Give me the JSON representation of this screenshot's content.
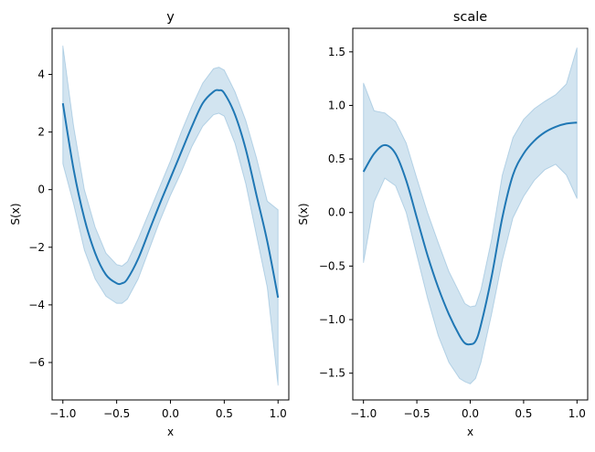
{
  "chart_data": [
    {
      "type": "line",
      "title": "y",
      "xlabel": "x",
      "ylabel": "S(x)",
      "xlim": [
        -1.1,
        1.1
      ],
      "ylim": [
        -7.3,
        5.6
      ],
      "xticks": [
        -1.0,
        -0.5,
        0.0,
        0.5,
        1.0
      ],
      "xtick_labels": [
        "−1.0",
        "−0.5",
        "0.0",
        "0.5",
        "1.0"
      ],
      "yticks": [
        -6,
        -4,
        -2,
        0,
        2,
        4
      ],
      "ytick_labels": [
        "−6",
        "−4",
        "−2",
        "0",
        "2",
        "4"
      ],
      "grid": false,
      "line_color": "#1f77b4",
      "band_color": "#1f77b4",
      "band_opacity": 0.2,
      "x": [
        -1.0,
        -0.9,
        -0.8,
        -0.7,
        -0.6,
        -0.5,
        -0.45,
        -0.4,
        -0.3,
        -0.2,
        -0.1,
        0.0,
        0.1,
        0.2,
        0.3,
        0.4,
        0.45,
        0.5,
        0.6,
        0.7,
        0.8,
        0.9,
        1.0
      ],
      "series": [
        {
          "values": [
            3.0,
            0.7,
            -1.0,
            -2.2,
            -2.95,
            -3.25,
            -3.25,
            -3.1,
            -2.4,
            -1.45,
            -0.5,
            0.4,
            1.3,
            2.2,
            3.0,
            3.4,
            3.45,
            3.35,
            2.6,
            1.4,
            -0.2,
            -1.8,
            -3.75
          ],
          "lower": [
            0.9,
            -0.5,
            -2.1,
            -3.1,
            -3.7,
            -3.95,
            -3.95,
            -3.8,
            -3.1,
            -2.1,
            -1.1,
            -0.2,
            0.6,
            1.5,
            2.2,
            2.6,
            2.65,
            2.55,
            1.6,
            0.2,
            -1.6,
            -3.4,
            -6.8
          ],
          "upper": [
            5.0,
            2.2,
            0.0,
            -1.3,
            -2.2,
            -2.6,
            -2.65,
            -2.5,
            -1.7,
            -0.8,
            0.1,
            1.0,
            2.0,
            2.9,
            3.7,
            4.2,
            4.25,
            4.15,
            3.4,
            2.4,
            1.1,
            -0.4,
            -0.7
          ]
        }
      ]
    },
    {
      "type": "line",
      "title": "scale",
      "xlabel": "x",
      "ylabel": "S(x)",
      "xlim": [
        -1.1,
        1.1
      ],
      "ylim": [
        -1.75,
        1.72
      ],
      "xticks": [
        -1.0,
        -0.5,
        0.0,
        0.5,
        1.0
      ],
      "xtick_labels": [
        "−1.0",
        "−0.5",
        "0.0",
        "0.5",
        "1.0"
      ],
      "yticks": [
        -1.5,
        -1.0,
        -0.5,
        0.0,
        0.5,
        1.0,
        1.5
      ],
      "ytick_labels": [
        "−1.5",
        "−1.0",
        "−0.5",
        "0.0",
        "0.5",
        "1.0",
        "1.5"
      ],
      "grid": false,
      "line_color": "#1f77b4",
      "band_color": "#1f77b4",
      "band_opacity": 0.2,
      "x": [
        -1.0,
        -0.9,
        -0.8,
        -0.7,
        -0.6,
        -0.5,
        -0.4,
        -0.3,
        -0.2,
        -0.1,
        -0.05,
        0.0,
        0.05,
        0.1,
        0.2,
        0.3,
        0.4,
        0.5,
        0.6,
        0.7,
        0.8,
        0.9,
        1.0
      ],
      "series": [
        {
          "values": [
            0.38,
            0.55,
            0.63,
            0.55,
            0.3,
            -0.05,
            -0.4,
            -0.7,
            -0.95,
            -1.15,
            -1.22,
            -1.23,
            -1.2,
            -1.05,
            -0.6,
            -0.05,
            0.35,
            0.55,
            0.67,
            0.75,
            0.8,
            0.83,
            0.84
          ],
          "lower": [
            -0.47,
            0.1,
            0.32,
            0.25,
            0.0,
            -0.4,
            -0.8,
            -1.15,
            -1.4,
            -1.55,
            -1.58,
            -1.6,
            -1.55,
            -1.4,
            -0.95,
            -0.45,
            -0.05,
            0.15,
            0.3,
            0.4,
            0.45,
            0.35,
            0.13
          ],
          "upper": [
            1.21,
            0.95,
            0.93,
            0.85,
            0.65,
            0.32,
            0.0,
            -0.28,
            -0.55,
            -0.75,
            -0.85,
            -0.88,
            -0.87,
            -0.72,
            -0.25,
            0.35,
            0.7,
            0.87,
            0.97,
            1.04,
            1.1,
            1.2,
            1.54
          ]
        }
      ]
    }
  ]
}
